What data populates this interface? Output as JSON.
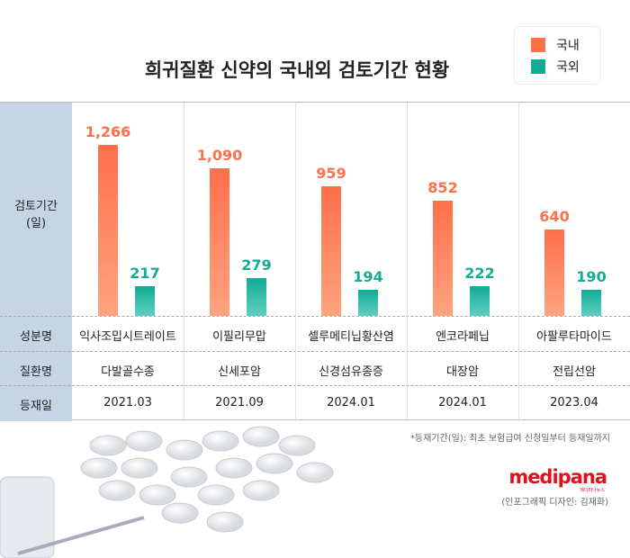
{
  "title": "희귀질환 신약의 국내외 검토기간 현황",
  "colors": {
    "domestic": "#ff6f4a",
    "foreign": "#12ab96",
    "label_col": "#c5d5e6"
  },
  "chart_data": {
    "type": "bar",
    "title": "희귀질환 신약의 국내외 검토기간 현황",
    "ylabel": "검토기간\n(일)",
    "categories": [
      "익사조밉시트레이트",
      "이필리무맙",
      "셀루메티닙황산염",
      "엔코라페닙",
      "아팔루타마이드"
    ],
    "series": [
      {
        "name": "국내",
        "values": [
          1266,
          1090,
          959,
          852,
          640
        ],
        "labels": [
          "1,266",
          "1,090",
          "959",
          "852",
          "640"
        ]
      },
      {
        "name": "국외",
        "values": [
          217,
          279,
          194,
          222,
          190
        ],
        "labels": [
          "217",
          "279",
          "194",
          "222",
          "190"
        ]
      }
    ],
    "ylim": [
      0,
      1266
    ],
    "legend": "top-right",
    "grid": false
  },
  "legend": [
    "국내",
    "국외"
  ],
  "rows": {
    "ylabel1": "검토기간",
    "ylabel2": "(일)",
    "ingredient_label": "성분명",
    "disease_label": "질환명",
    "date_label": "등재일",
    "diseases": [
      "다발골수종",
      "신세포암",
      "신경섬유종증",
      "대장암",
      "전립선암"
    ],
    "dates": [
      "2021.03",
      "2021.09",
      "2024.01",
      "2024.01",
      "2023.04"
    ]
  },
  "footnote": "*등재기간(일): 최초 보험급여 신청일부터 등재일까지",
  "logo": "medipana",
  "logo_sub": "메디파나뉴스",
  "credit": "(인포그래픽 디자인: 김재화)"
}
